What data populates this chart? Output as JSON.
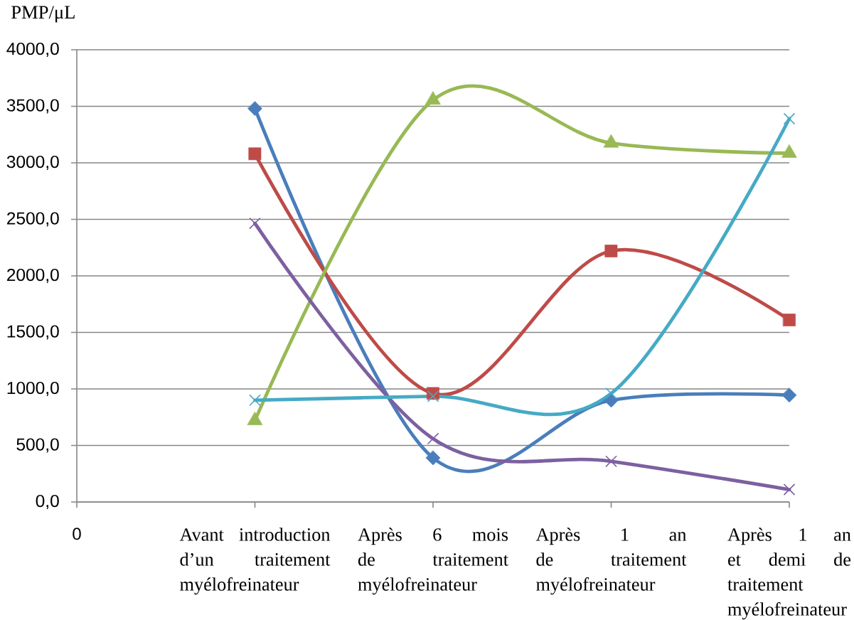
{
  "chart_data": {
    "type": "line",
    "ylabel": "PMP/μL",
    "categories": [
      "0",
      "Avant introduction d’un traitement myélofreinateur",
      "Après 6 mois de traitement myélofreinateur",
      "Après 1 an de traitement myélofreinateur",
      "Après 1 an et demi de traitement myélofreinateur"
    ],
    "series": [
      {
        "color": "#4a7ebb",
        "marker": "diamond",
        "values": [
          null,
          3480,
          390,
          900,
          945
        ]
      },
      {
        "color": "#be4b48",
        "marker": "square",
        "values": [
          null,
          3080,
          960,
          2220,
          1610
        ]
      },
      {
        "color": "#98b954",
        "marker": "triangle",
        "values": [
          null,
          720,
          3555,
          3175,
          3085
        ]
      },
      {
        "color": "#7d60a0",
        "marker": "cross",
        "values": [
          null,
          2465,
          560,
          360,
          110
        ]
      },
      {
        "color": "#46aac5",
        "marker": "cross",
        "values": [
          null,
          900,
          935,
          960,
          3390
        ]
      }
    ],
    "ylim": [
      0,
      4000
    ],
    "yticks": [
      {
        "value": 0,
        "label": "0,0"
      },
      {
        "value": 500,
        "label": "500,0"
      },
      {
        "value": 1000,
        "label": "1000,0"
      },
      {
        "value": 1500,
        "label": "1500,0"
      },
      {
        "value": 2000,
        "label": "2000,0"
      },
      {
        "value": 2500,
        "label": "2500,0"
      },
      {
        "value": 3000,
        "label": "3000,0"
      },
      {
        "value": 3500,
        "label": "3500,0"
      },
      {
        "value": 4000,
        "label": "4000,0"
      }
    ],
    "grid": "y",
    "line_style": "solid"
  }
}
